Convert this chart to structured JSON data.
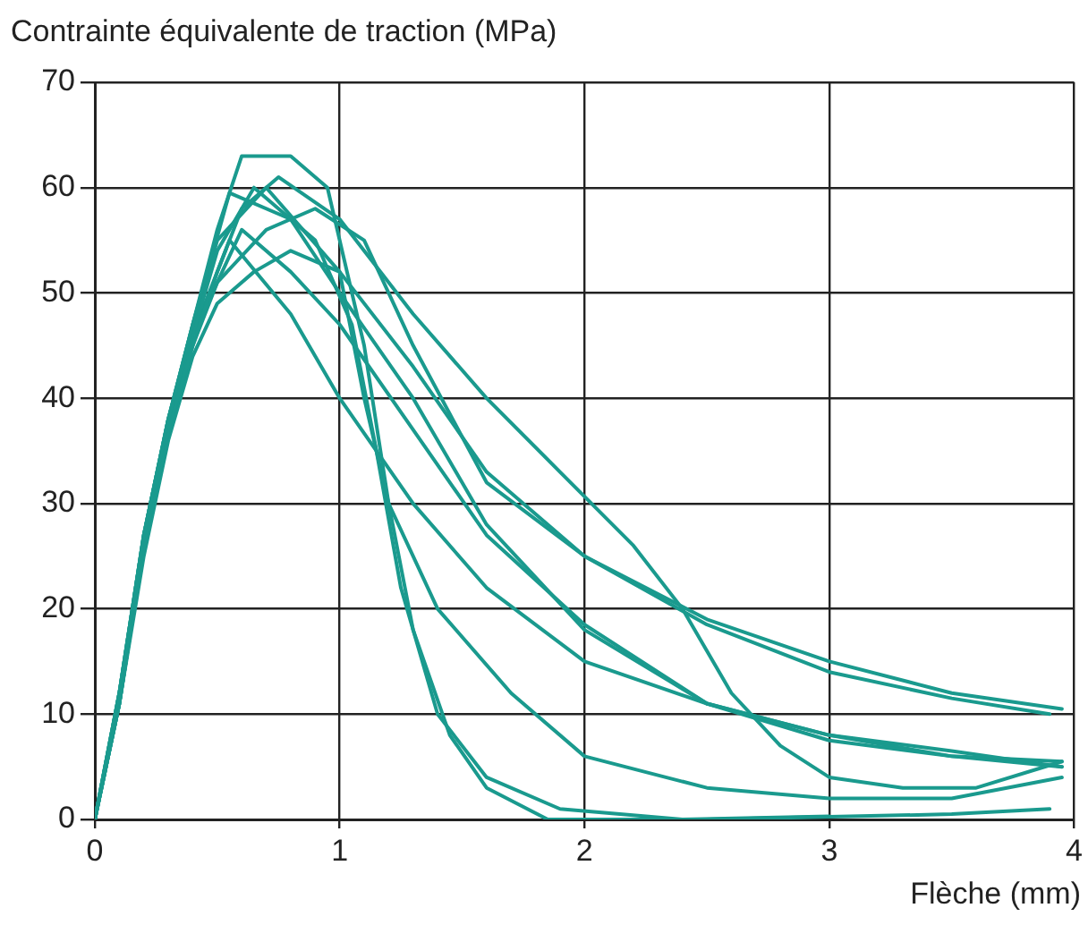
{
  "chart_data": {
    "type": "line",
    "xlabel": "Flèche (mm)",
    "ylabel": "Contrainte équivalente de traction (MPa)",
    "xlim": [
      0,
      4
    ],
    "xticks": [
      0,
      1,
      2,
      3,
      4
    ],
    "ylim": [
      0,
      70
    ],
    "yticks": [
      0,
      10,
      20,
      30,
      40,
      50,
      60,
      70
    ],
    "grid": true,
    "legend": false,
    "marker": "none",
    "line_style": "solid",
    "series": [
      {
        "color": "#1a9a8e",
        "x": [
          0,
          0.1,
          0.2,
          0.3,
          0.4,
          0.5,
          0.6,
          0.8,
          0.95,
          1.1,
          1.2,
          1.3,
          1.45,
          1.6,
          1.85,
          2.5,
          3.5,
          3.9
        ],
        "values": [
          0,
          12,
          27,
          38,
          47,
          56,
          63,
          63,
          60,
          45,
          30,
          18,
          8,
          3,
          0,
          0,
          0.5,
          1
        ]
      },
      {
        "color": "#1a9a8e",
        "x": [
          0,
          0.1,
          0.2,
          0.3,
          0.4,
          0.5,
          0.6,
          0.75,
          1.0,
          1.3,
          1.6,
          1.9,
          2.2,
          2.4,
          2.6,
          2.8,
          3.0,
          3.3,
          3.6,
          3.95
        ],
        "values": [
          0,
          11,
          26,
          37,
          45,
          52,
          58,
          61,
          57,
          48,
          40,
          33,
          26,
          20,
          12,
          7,
          4,
          3,
          3,
          5.5
        ]
      },
      {
        "color": "#1a9a8e",
        "x": [
          0,
          0.1,
          0.2,
          0.3,
          0.4,
          0.5,
          0.65,
          0.9,
          1.05,
          1.15,
          1.25,
          1.4,
          1.6,
          1.9,
          2.4,
          3.0
        ],
        "values": [
          0,
          12,
          27,
          38,
          46,
          54,
          60,
          55,
          47,
          35,
          22,
          10,
          4,
          1,
          0,
          0.3
        ]
      },
      {
        "color": "#1a9a8e",
        "x": [
          0,
          0.1,
          0.2,
          0.3,
          0.4,
          0.5,
          0.7,
          0.9,
          1.1,
          1.3,
          1.6,
          2.0,
          2.5,
          3.0,
          3.5,
          3.95
        ],
        "values": [
          0,
          11,
          26,
          37,
          45,
          51,
          56,
          58,
          55,
          45,
          32,
          25,
          19,
          15,
          12,
          10.5
        ]
      },
      {
        "color": "#1a9a8e",
        "x": [
          0,
          0.1,
          0.2,
          0.3,
          0.4,
          0.5,
          0.65,
          0.8,
          1.0,
          1.3,
          1.6,
          2.0,
          2.5,
          3.0,
          3.5,
          3.9
        ],
        "values": [
          0,
          11,
          25,
          36,
          44,
          49,
          52,
          54,
          52,
          43,
          33,
          25,
          18.5,
          14,
          11.5,
          10
        ]
      },
      {
        "color": "#1a9a8e",
        "x": [
          0,
          0.1,
          0.2,
          0.3,
          0.4,
          0.55,
          0.8,
          1.0,
          1.3,
          1.6,
          2.0,
          2.5,
          3.0,
          3.5,
          3.95
        ],
        "values": [
          0,
          12,
          27,
          38,
          47,
          59.5,
          57,
          50,
          40,
          28,
          18,
          11,
          8,
          6.5,
          5
        ]
      },
      {
        "color": "#1a9a8e",
        "x": [
          0,
          0.1,
          0.2,
          0.3,
          0.4,
          0.6,
          0.8,
          1.0,
          1.3,
          1.6,
          2.0,
          2.5,
          3.0,
          3.5,
          3.95
        ],
        "values": [
          0,
          11,
          26,
          37,
          46,
          56,
          52,
          47,
          37,
          27,
          18.5,
          11,
          7.5,
          6,
          5.5
        ]
      },
      {
        "color": "#1a9a8e",
        "x": [
          0,
          0.1,
          0.2,
          0.3,
          0.4,
          0.55,
          0.8,
          1.0,
          1.3,
          1.6,
          2.0,
          2.5,
          3.0,
          3.5,
          3.95
        ],
        "values": [
          0,
          11,
          26,
          37,
          46,
          55,
          48,
          40,
          30,
          22,
          15,
          11,
          8,
          6,
          5
        ]
      },
      {
        "color": "#1a9a8e",
        "x": [
          0,
          0.1,
          0.2,
          0.3,
          0.4,
          0.5,
          0.7,
          1.0,
          1.1,
          1.2,
          1.4,
          1.7,
          2.0,
          2.5,
          3.0,
          3.5,
          3.95
        ],
        "values": [
          0,
          12,
          27,
          38,
          47,
          55,
          60,
          52,
          40,
          30,
          20,
          12,
          6,
          3,
          2,
          2,
          4
        ]
      }
    ]
  }
}
